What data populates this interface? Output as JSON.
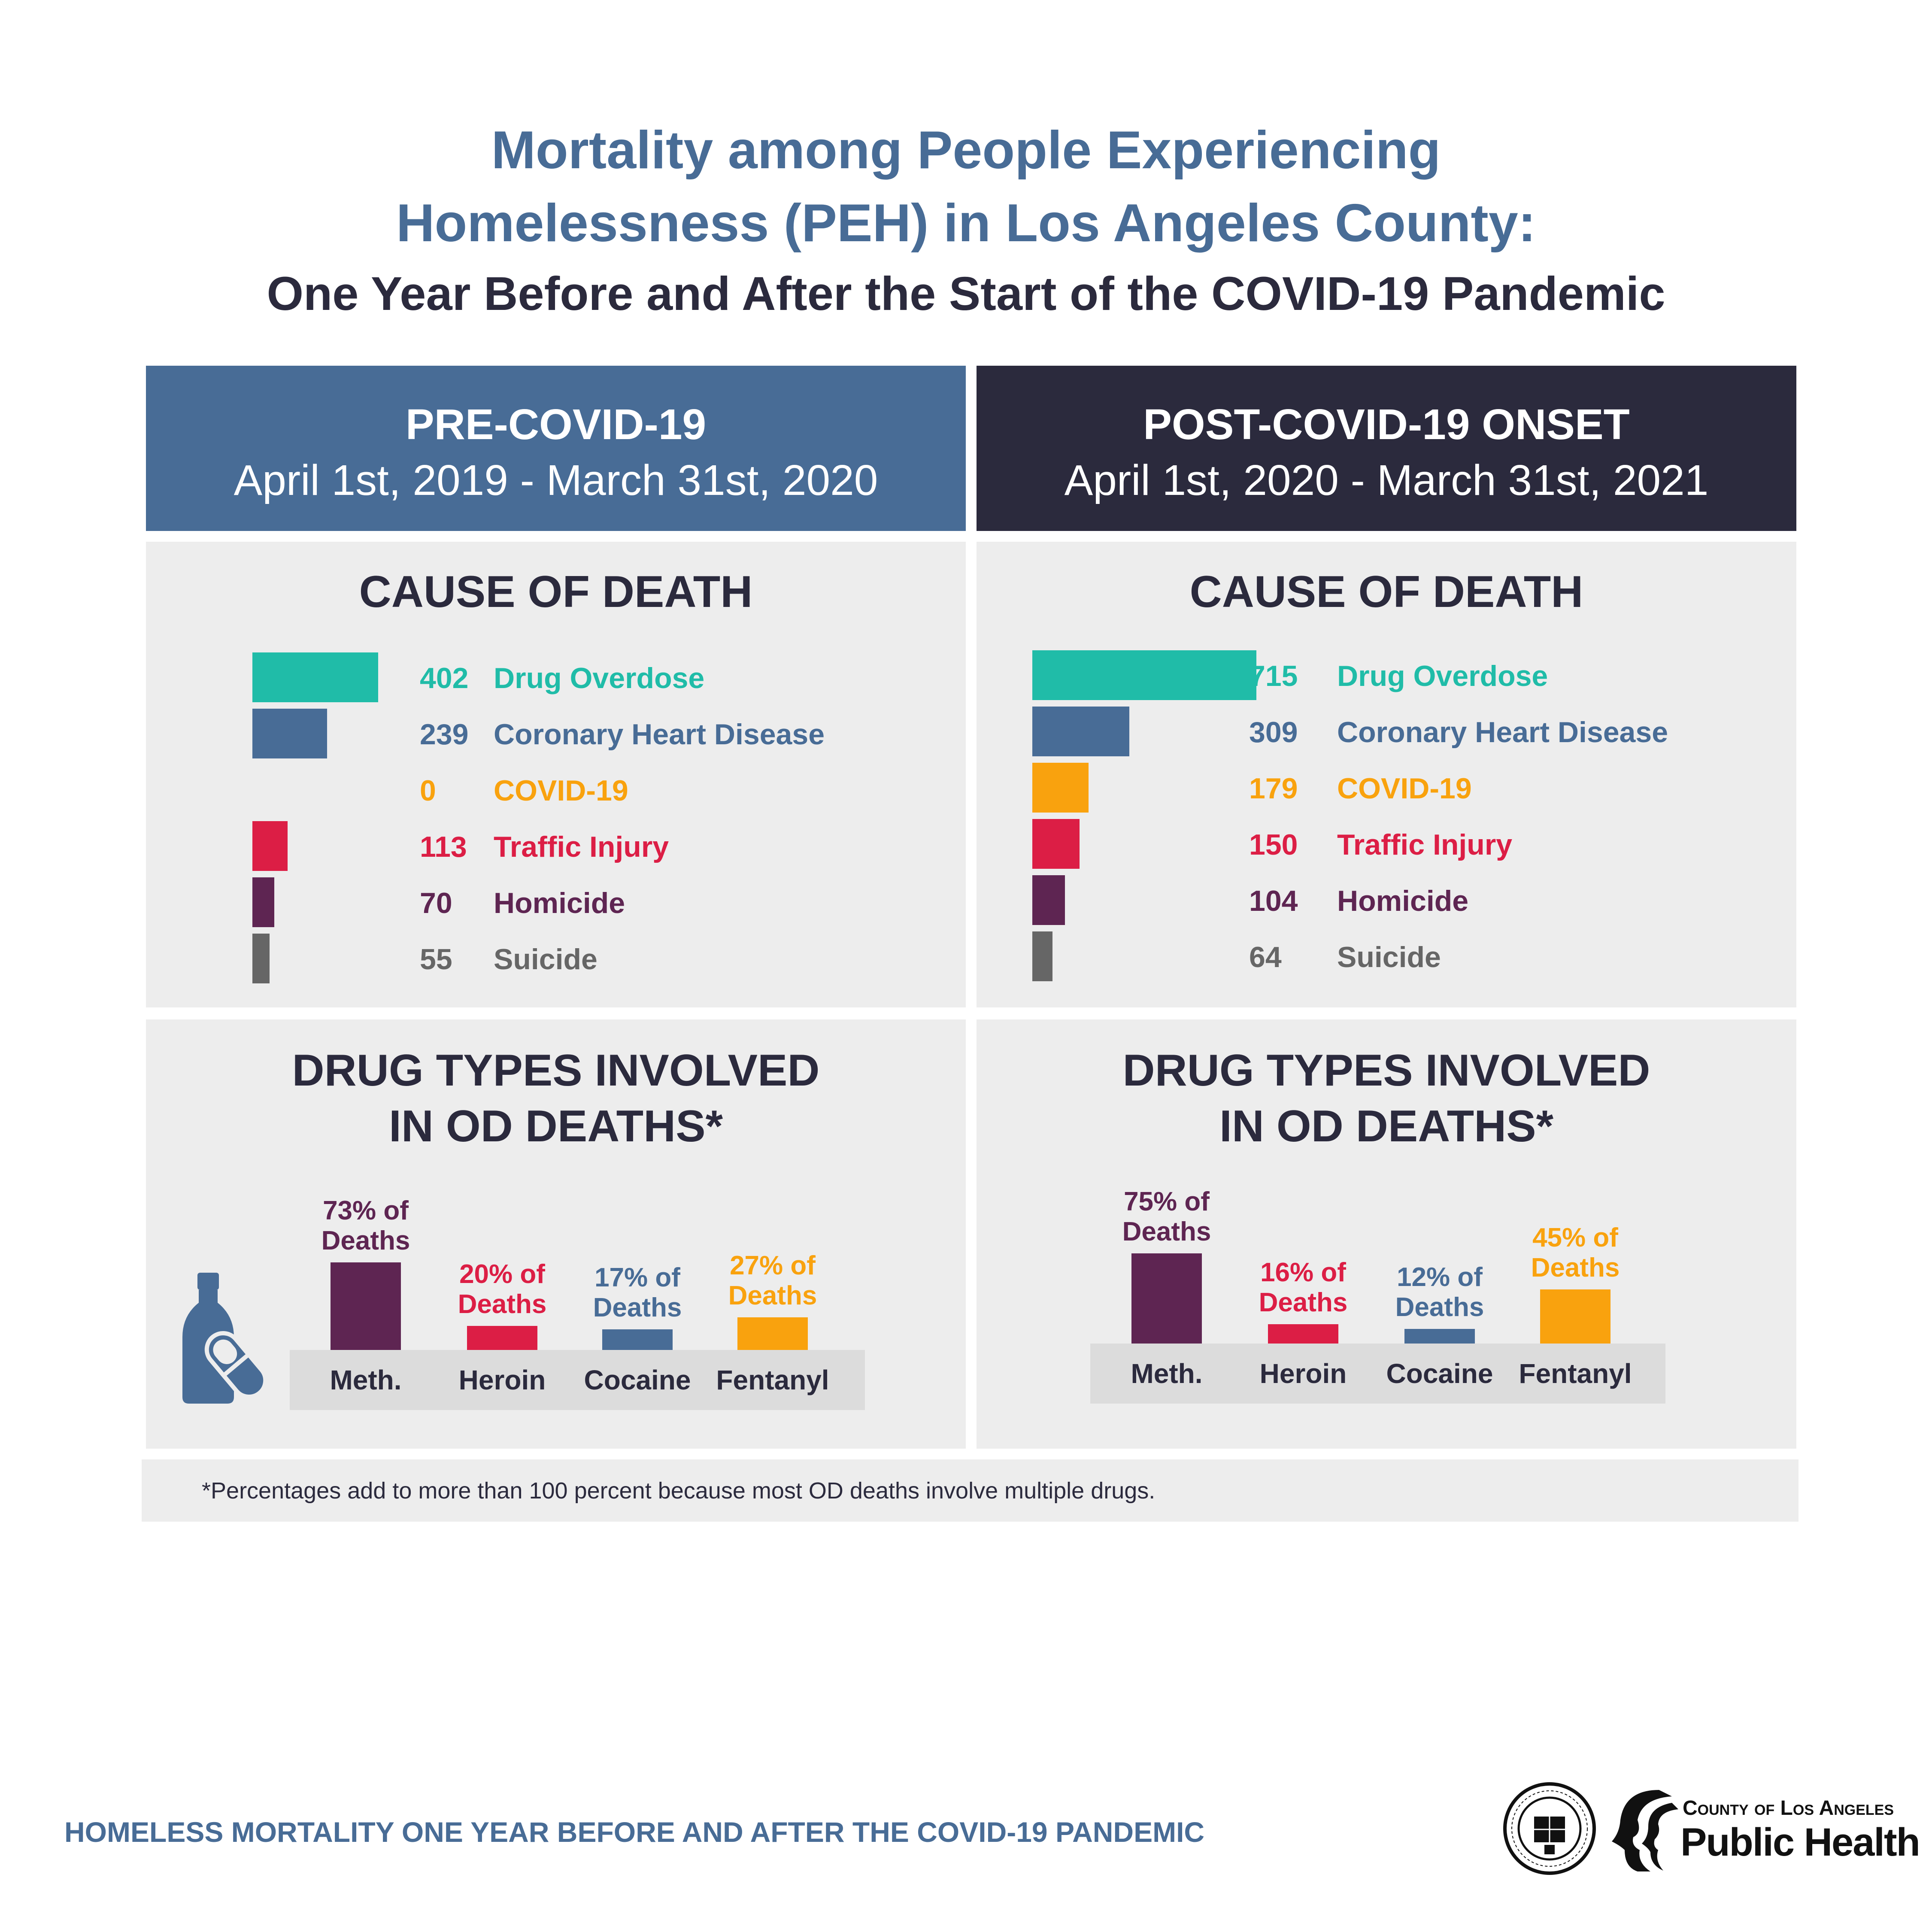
{
  "title": {
    "line1": "Mortality among People Experiencing",
    "line2": "Homelessness (PEH)  in Los Angeles County:",
    "line3": "One Year Before and After the Start of the COVID-19 Pandemic"
  },
  "pre": {
    "header": "PRE-COVID-19",
    "dates": "April 1st, 2019 - March 31st, 2020"
  },
  "post": {
    "header": "POST-COVID-19 ONSET",
    "dates": "April 1st, 2020 - March 31st, 2021"
  },
  "cause_title": "CAUSE OF DEATH",
  "drug_title_1": "DRUG TYPES INVOLVED",
  "drug_title_2": "IN OD DEATHS*",
  "footnote": "*Percentages add to more than 100 percent because most OD deaths involve multiple drugs.",
  "bottom_text": "HOMELESS MORTALITY ONE YEAR BEFORE AND AFTER THE COVID-19 PANDEMIC",
  "logo": {
    "line1": "County of Los Angeles",
    "line2": "Public Health"
  },
  "colors": {
    "teal": "#20bca8",
    "blue": "#486c96",
    "orange": "#f9a20e",
    "red": "#dc1e45",
    "purple": "#5e2552",
    "gray": "#666666",
    "navy": "#2b2a3d"
  },
  "icons": [
    "bottle-pill-icon",
    "county-seal-icon",
    "public-health-logo-icon"
  ],
  "chart_data": [
    {
      "type": "bar",
      "orientation": "horizontal",
      "title": "CAUSE OF DEATH",
      "period": "PRE-COVID-19",
      "categories": [
        "Drug Overdose",
        "Coronary Heart Disease",
        "COVID-19",
        "Traffic Injury",
        "Homicide",
        "Suicide"
      ],
      "values": [
        402,
        239,
        0,
        113,
        70,
        55
      ],
      "colors": [
        "#20bca8",
        "#486c96",
        "#f9a20e",
        "#dc1e45",
        "#5e2552",
        "#666666"
      ]
    },
    {
      "type": "bar",
      "orientation": "horizontal",
      "title": "CAUSE OF DEATH",
      "period": "POST-COVID-19 ONSET",
      "categories": [
        "Drug Overdose",
        "Coronary Heart Disease",
        "COVID-19",
        "Traffic Injury",
        "Homicide",
        "Suicide"
      ],
      "values": [
        715,
        309,
        179,
        150,
        104,
        64
      ],
      "colors": [
        "#20bca8",
        "#486c96",
        "#f9a20e",
        "#dc1e45",
        "#5e2552",
        "#666666"
      ]
    },
    {
      "type": "bar",
      "title": "DRUG TYPES INVOLVED IN OD DEATHS*",
      "period": "PRE-COVID-19",
      "categories": [
        "Meth.",
        "Heroin",
        "Cocaine",
        "Fentanyl"
      ],
      "values": [
        73,
        20,
        17,
        27
      ],
      "labels": [
        "73% of Deaths",
        "20% of Deaths",
        "17% of Deaths",
        "27% of Deaths"
      ],
      "colors": [
        "#5e2552",
        "#dc1e45",
        "#486c96",
        "#f9a20e"
      ]
    },
    {
      "type": "bar",
      "title": "DRUG TYPES INVOLVED IN OD DEATHS*",
      "period": "POST-COVID-19 ONSET",
      "categories": [
        "Meth.",
        "Heroin",
        "Cocaine",
        "Fentanyl"
      ],
      "values": [
        75,
        16,
        12,
        45
      ],
      "labels": [
        "75% of Deaths",
        "16% of Deaths",
        "12% of Deaths",
        "45% of Deaths"
      ],
      "colors": [
        "#5e2552",
        "#dc1e45",
        "#486c96",
        "#f9a20e"
      ]
    }
  ]
}
